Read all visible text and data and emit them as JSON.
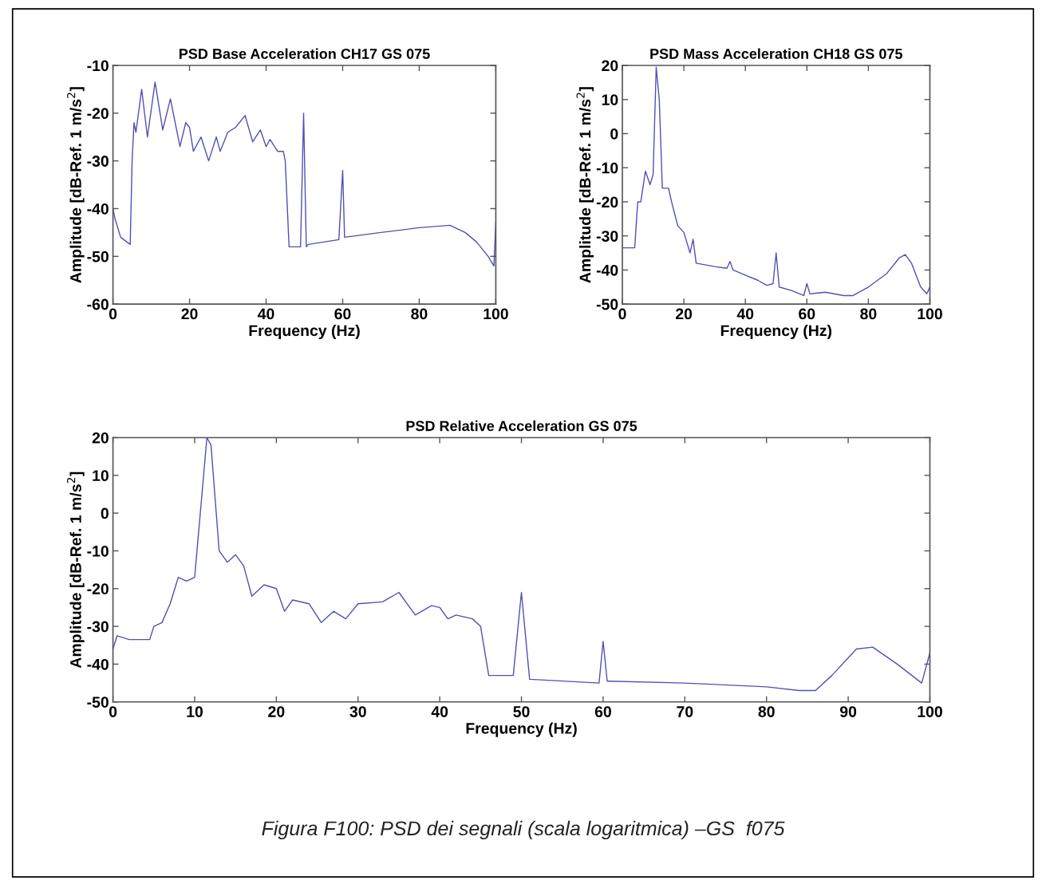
{
  "chart_data": [
    {
      "type": "line",
      "title": "PSD Base Acceleration CH17 GS 075",
      "xlabel": "Frequency (Hz)",
      "ylabel": "Amplitude [dB-Ref. 1 m/s$^{2}$]",
      "xlim": [
        0,
        100
      ],
      "xticks": [
        0,
        20,
        40,
        60,
        80,
        100
      ],
      "ylim": [
        -60,
        -10
      ],
      "yticks": [
        -60,
        -50,
        -40,
        -30,
        -20,
        -10
      ],
      "grid": false,
      "series": [
        {
          "color": "#5050b4",
          "x": [
            0,
            0.5,
            2,
            4.5,
            5,
            5.5,
            6,
            7.5,
            9,
            11,
            13,
            15,
            17.5,
            19,
            20,
            21,
            23,
            25,
            27,
            28,
            30,
            32,
            34.5,
            36.5,
            38.5,
            40,
            41,
            43,
            44.5,
            45,
            46,
            49,
            49.8,
            50.5,
            51,
            59,
            60,
            60.5,
            70,
            80,
            88,
            92,
            95,
            98,
            99.5,
            100
          ],
          "values": [
            -40,
            -42,
            -46,
            -47.5,
            -30,
            -22,
            -24,
            -15,
            -25,
            -13.5,
            -23.5,
            -17,
            -27,
            -22,
            -23,
            -28,
            -25,
            -30,
            -25,
            -28,
            -24,
            -23,
            -20.5,
            -26,
            -23.5,
            -27,
            -25.5,
            -28,
            -28,
            -30,
            -48,
            -48,
            -20,
            -48,
            -47.5,
            -46.5,
            -32,
            -46,
            -45,
            -44,
            -43.5,
            -45,
            -47,
            -50,
            -52,
            -43
          ]
        }
      ]
    },
    {
      "type": "line",
      "title": "PSD Mass Acceleration CH18 GS 075",
      "xlabel": "Frequency (Hz)",
      "ylabel": "Amplitude [dB-Ref. 1 m/s$^{2}$]",
      "xlim": [
        0,
        100
      ],
      "xticks": [
        0,
        20,
        40,
        60,
        80,
        100
      ],
      "ylim": [
        -50,
        20
      ],
      "yticks": [
        -50,
        -40,
        -30,
        -20,
        -10,
        0,
        10,
        20
      ],
      "grid": false,
      "series": [
        {
          "color": "#5050b4",
          "x": [
            0,
            4,
            5,
            6,
            7.5,
            9,
            10,
            11,
            12,
            13,
            15,
            16,
            18,
            20,
            22,
            23,
            24,
            30,
            34,
            35,
            36,
            40,
            44,
            47,
            49,
            50,
            51,
            55,
            59,
            60,
            61,
            66,
            72,
            75,
            80,
            86,
            90,
            92,
            94,
            97,
            99,
            100
          ],
          "values": [
            -33.5,
            -33.5,
            -20,
            -20,
            -11,
            -15,
            -12,
            19.5,
            10,
            -16,
            -16,
            -20,
            -27,
            -29,
            -35,
            -31,
            -38,
            -39,
            -39.5,
            -37.5,
            -40,
            -41.5,
            -43,
            -44.5,
            -44,
            -35,
            -45,
            -46,
            -47.5,
            -44,
            -47,
            -46.5,
            -47.5,
            -47.5,
            -45,
            -41,
            -36.5,
            -35.5,
            -38,
            -45,
            -47,
            -45
          ]
        }
      ]
    },
    {
      "type": "line",
      "title": "PSD Relative Acceleration GS 075",
      "xlabel": "Frequency (Hz)",
      "ylabel": "Amplitude [dB-Ref. 1 m/s$^{2}$]",
      "xlim": [
        0,
        100
      ],
      "xticks": [
        0,
        10,
        20,
        30,
        40,
        50,
        60,
        70,
        80,
        90,
        100
      ],
      "ylim": [
        -50,
        20
      ],
      "yticks": [
        -50,
        -40,
        -30,
        -20,
        -10,
        0,
        10,
        20
      ],
      "grid": false,
      "annotations": [
        "Figura F100: PSD dei segnali (scala logaritmica) –GS  f075"
      ],
      "series": [
        {
          "color": "#5050b4",
          "x": [
            0,
            0.5,
            2,
            4.5,
            5,
            6,
            7,
            8,
            9,
            10,
            11.5,
            12,
            13,
            14,
            15,
            16,
            17,
            18.5,
            20,
            21,
            22,
            24,
            25.5,
            27,
            28.5,
            30,
            33,
            35,
            37,
            39,
            40,
            41,
            42,
            44,
            45,
            46,
            49,
            50,
            51,
            59.5,
            60,
            60.5,
            70,
            80,
            84,
            86,
            88,
            91,
            93,
            96,
            99,
            100
          ],
          "values": [
            -36,
            -32.5,
            -33.5,
            -33.5,
            -30,
            -29,
            -24,
            -17,
            -18,
            -17,
            20,
            18,
            -10,
            -13,
            -11,
            -14,
            -22,
            -19,
            -20,
            -26,
            -23,
            -24,
            -29,
            -26,
            -28,
            -24,
            -23.5,
            -21,
            -27,
            -24.5,
            -25,
            -28,
            -27,
            -28,
            -30,
            -43,
            -43,
            -21,
            -44,
            -45,
            -34,
            -44.5,
            -45,
            -46,
            -47,
            -47,
            -43,
            -36,
            -35.5,
            -40,
            -45,
            -37
          ]
        }
      ]
    }
  ]
}
